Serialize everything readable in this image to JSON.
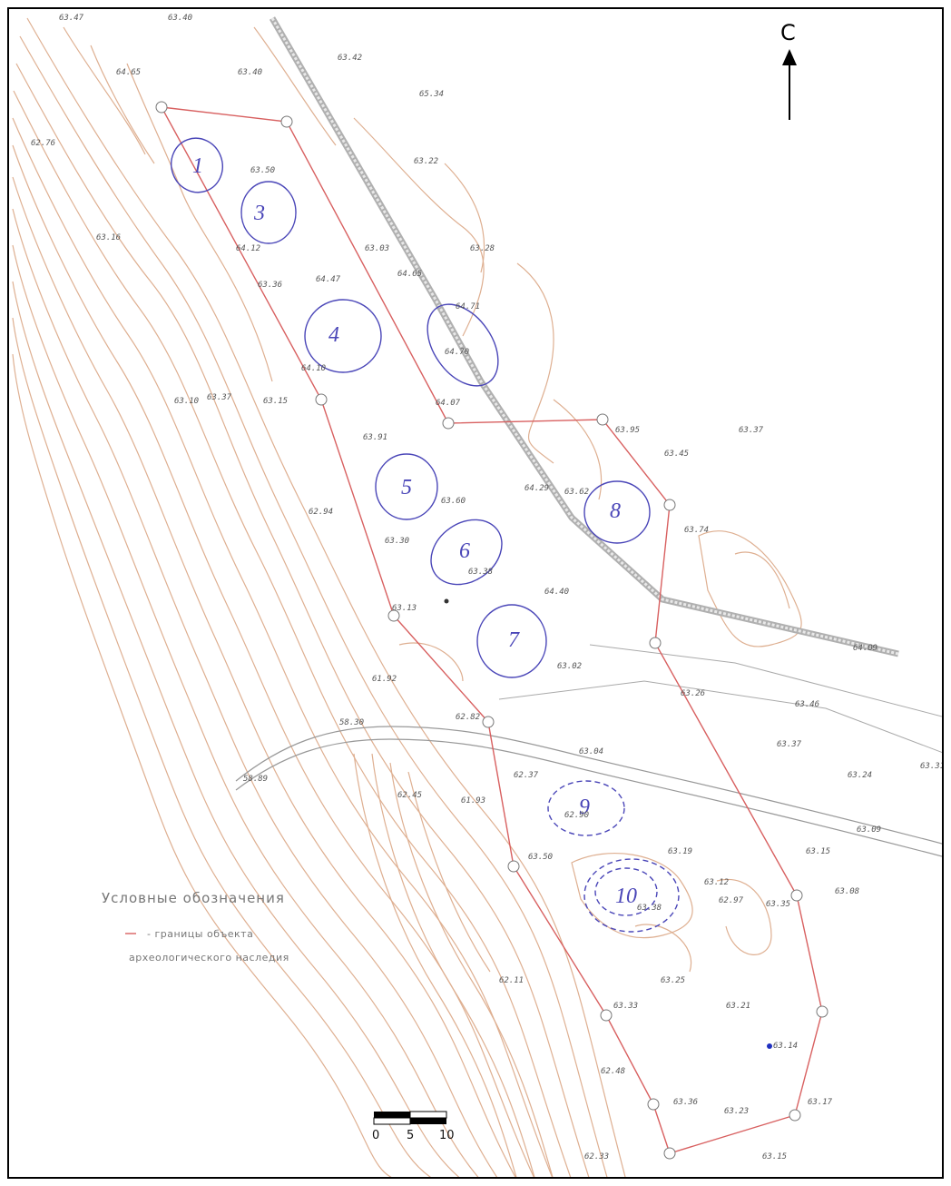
{
  "north_label": "С",
  "legend": {
    "title": "Условные обозначения",
    "line1": "- границы объекта",
    "line2": "археологического наследия"
  },
  "scale": {
    "labels": [
      "0",
      "5",
      "10"
    ]
  },
  "colors": {
    "boundary": "#d86060",
    "contour": "#d8a080",
    "mound": "#4a46b8",
    "road": "#9a9a9a"
  },
  "mounds": [
    "1",
    "3",
    "4",
    "5",
    "6",
    "7",
    "8",
    "9",
    "10"
  ],
  "elevations": [
    "63.47",
    "63.40",
    "63.42",
    "63.40",
    "64.65",
    "65.34",
    "63.22",
    "63.16",
    "63.03",
    "63.28",
    "63.50",
    "64.12",
    "64.71",
    "64.65",
    "64.70",
    "64.10",
    "64.07",
    "63.10",
    "63.37",
    "63.15",
    "63.91",
    "63.30",
    "63.60",
    "63.38",
    "64.40",
    "63.13",
    "62.76",
    "63.36",
    "64.47",
    "64.29",
    "63.62",
    "63.37",
    "62.94",
    "63.95",
    "63.74",
    "63.45",
    "64.09",
    "63.46",
    "63.37",
    "63.24",
    "63.31",
    "63.09",
    "63.15",
    "63.08",
    "63.26",
    "63.12",
    "62.37",
    "62.97",
    "63.35",
    "63.19",
    "62.90",
    "63.50",
    "62.11",
    "63.25",
    "63.33",
    "63.21",
    "63.14",
    "63.23",
    "63.17",
    "63.15",
    "62.33",
    "63.02",
    "63.04",
    "62.48",
    "63.38",
    "63.36",
    "62.45",
    "61.93",
    "58.30",
    "58.89",
    "62.82",
    "61.92"
  ]
}
